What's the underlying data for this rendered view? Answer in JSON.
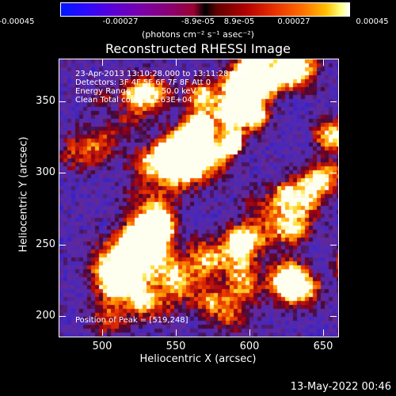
{
  "colorbar": {
    "ticks": [
      "-0.00045",
      "-0.00027",
      "-8.9e-05",
      "8.9e-05",
      "0.00027",
      "0.00045"
    ],
    "units": "(photons cm⁻² s⁻¹ asec⁻²)"
  },
  "plot": {
    "title": "Reconstructed RHESSI Image",
    "info_lines": [
      "23-Apr-2013 13:10:28.000 to 13:11:28.000",
      "Detectors: 3F 4F 5F 6F 7F 8F  Att 0",
      "Energy Range: 25.0 - 50.0 keV",
      "Clean     Total counts: 1.63E+04"
    ],
    "peak_text": "Position of Peak = [519,248]",
    "xlabel": "Heliocentric X (arcsec)",
    "ylabel": "Heliocentric Y (arcsec)",
    "xticks": [
      "500",
      "550",
      "600",
      "650"
    ],
    "yticks": [
      "200",
      "250",
      "300",
      "350"
    ]
  },
  "footer": {
    "date": "13-May-2022 00:46"
  },
  "chart_data": {
    "type": "heatmap",
    "title": "Reconstructed RHESSI Image",
    "xlabel": "Heliocentric X (arcsec)",
    "ylabel": "Heliocentric Y (arcsec)",
    "xlim": [
      469,
      661
    ],
    "ylim": [
      186,
      376
    ],
    "color_range": [
      -0.00045,
      0.00045
    ],
    "colorbar_units": "(photons cm⁻² s⁻¹ asec⁻²)",
    "peak_position": [
      519,
      248
    ]
  }
}
